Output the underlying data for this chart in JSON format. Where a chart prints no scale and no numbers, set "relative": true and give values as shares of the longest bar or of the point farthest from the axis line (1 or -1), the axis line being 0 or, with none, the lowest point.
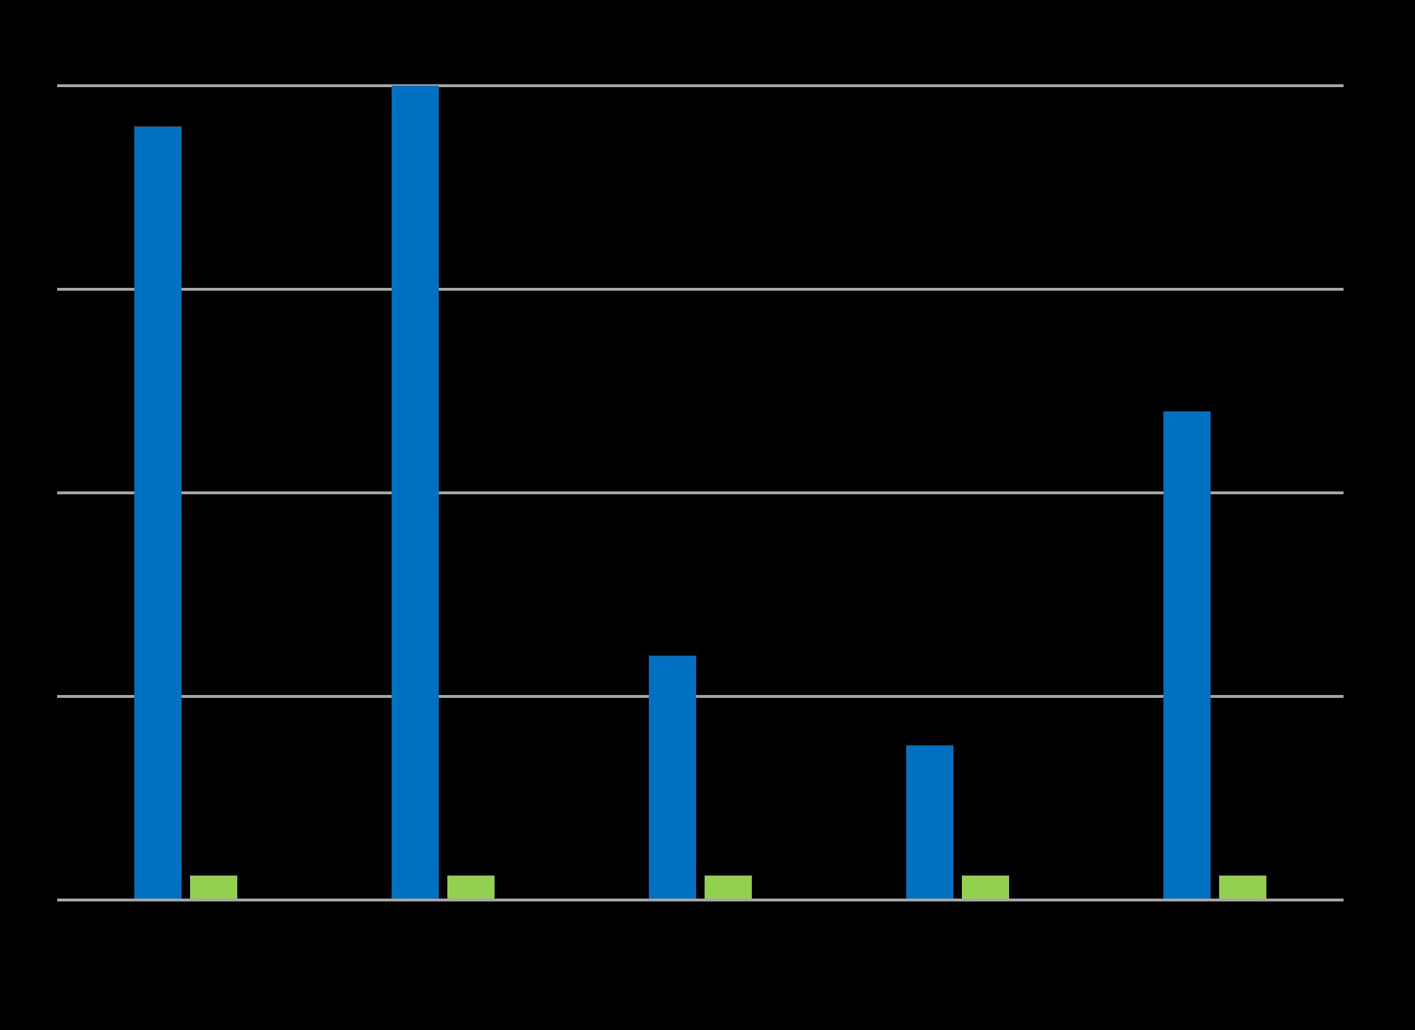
{
  "chart_data": {
    "type": "bar",
    "relative": true,
    "categories": [
      null,
      null,
      null,
      null,
      null
    ],
    "series": [
      {
        "color": "#0070c0",
        "values": [
          0.95,
          1,
          0.3,
          0.19,
          0.6
        ]
      },
      {
        "color": "#92d050",
        "values": [
          0.03,
          0.03,
          0.03,
          0.03,
          0.03
        ]
      }
    ],
    "grid": "y"
  }
}
